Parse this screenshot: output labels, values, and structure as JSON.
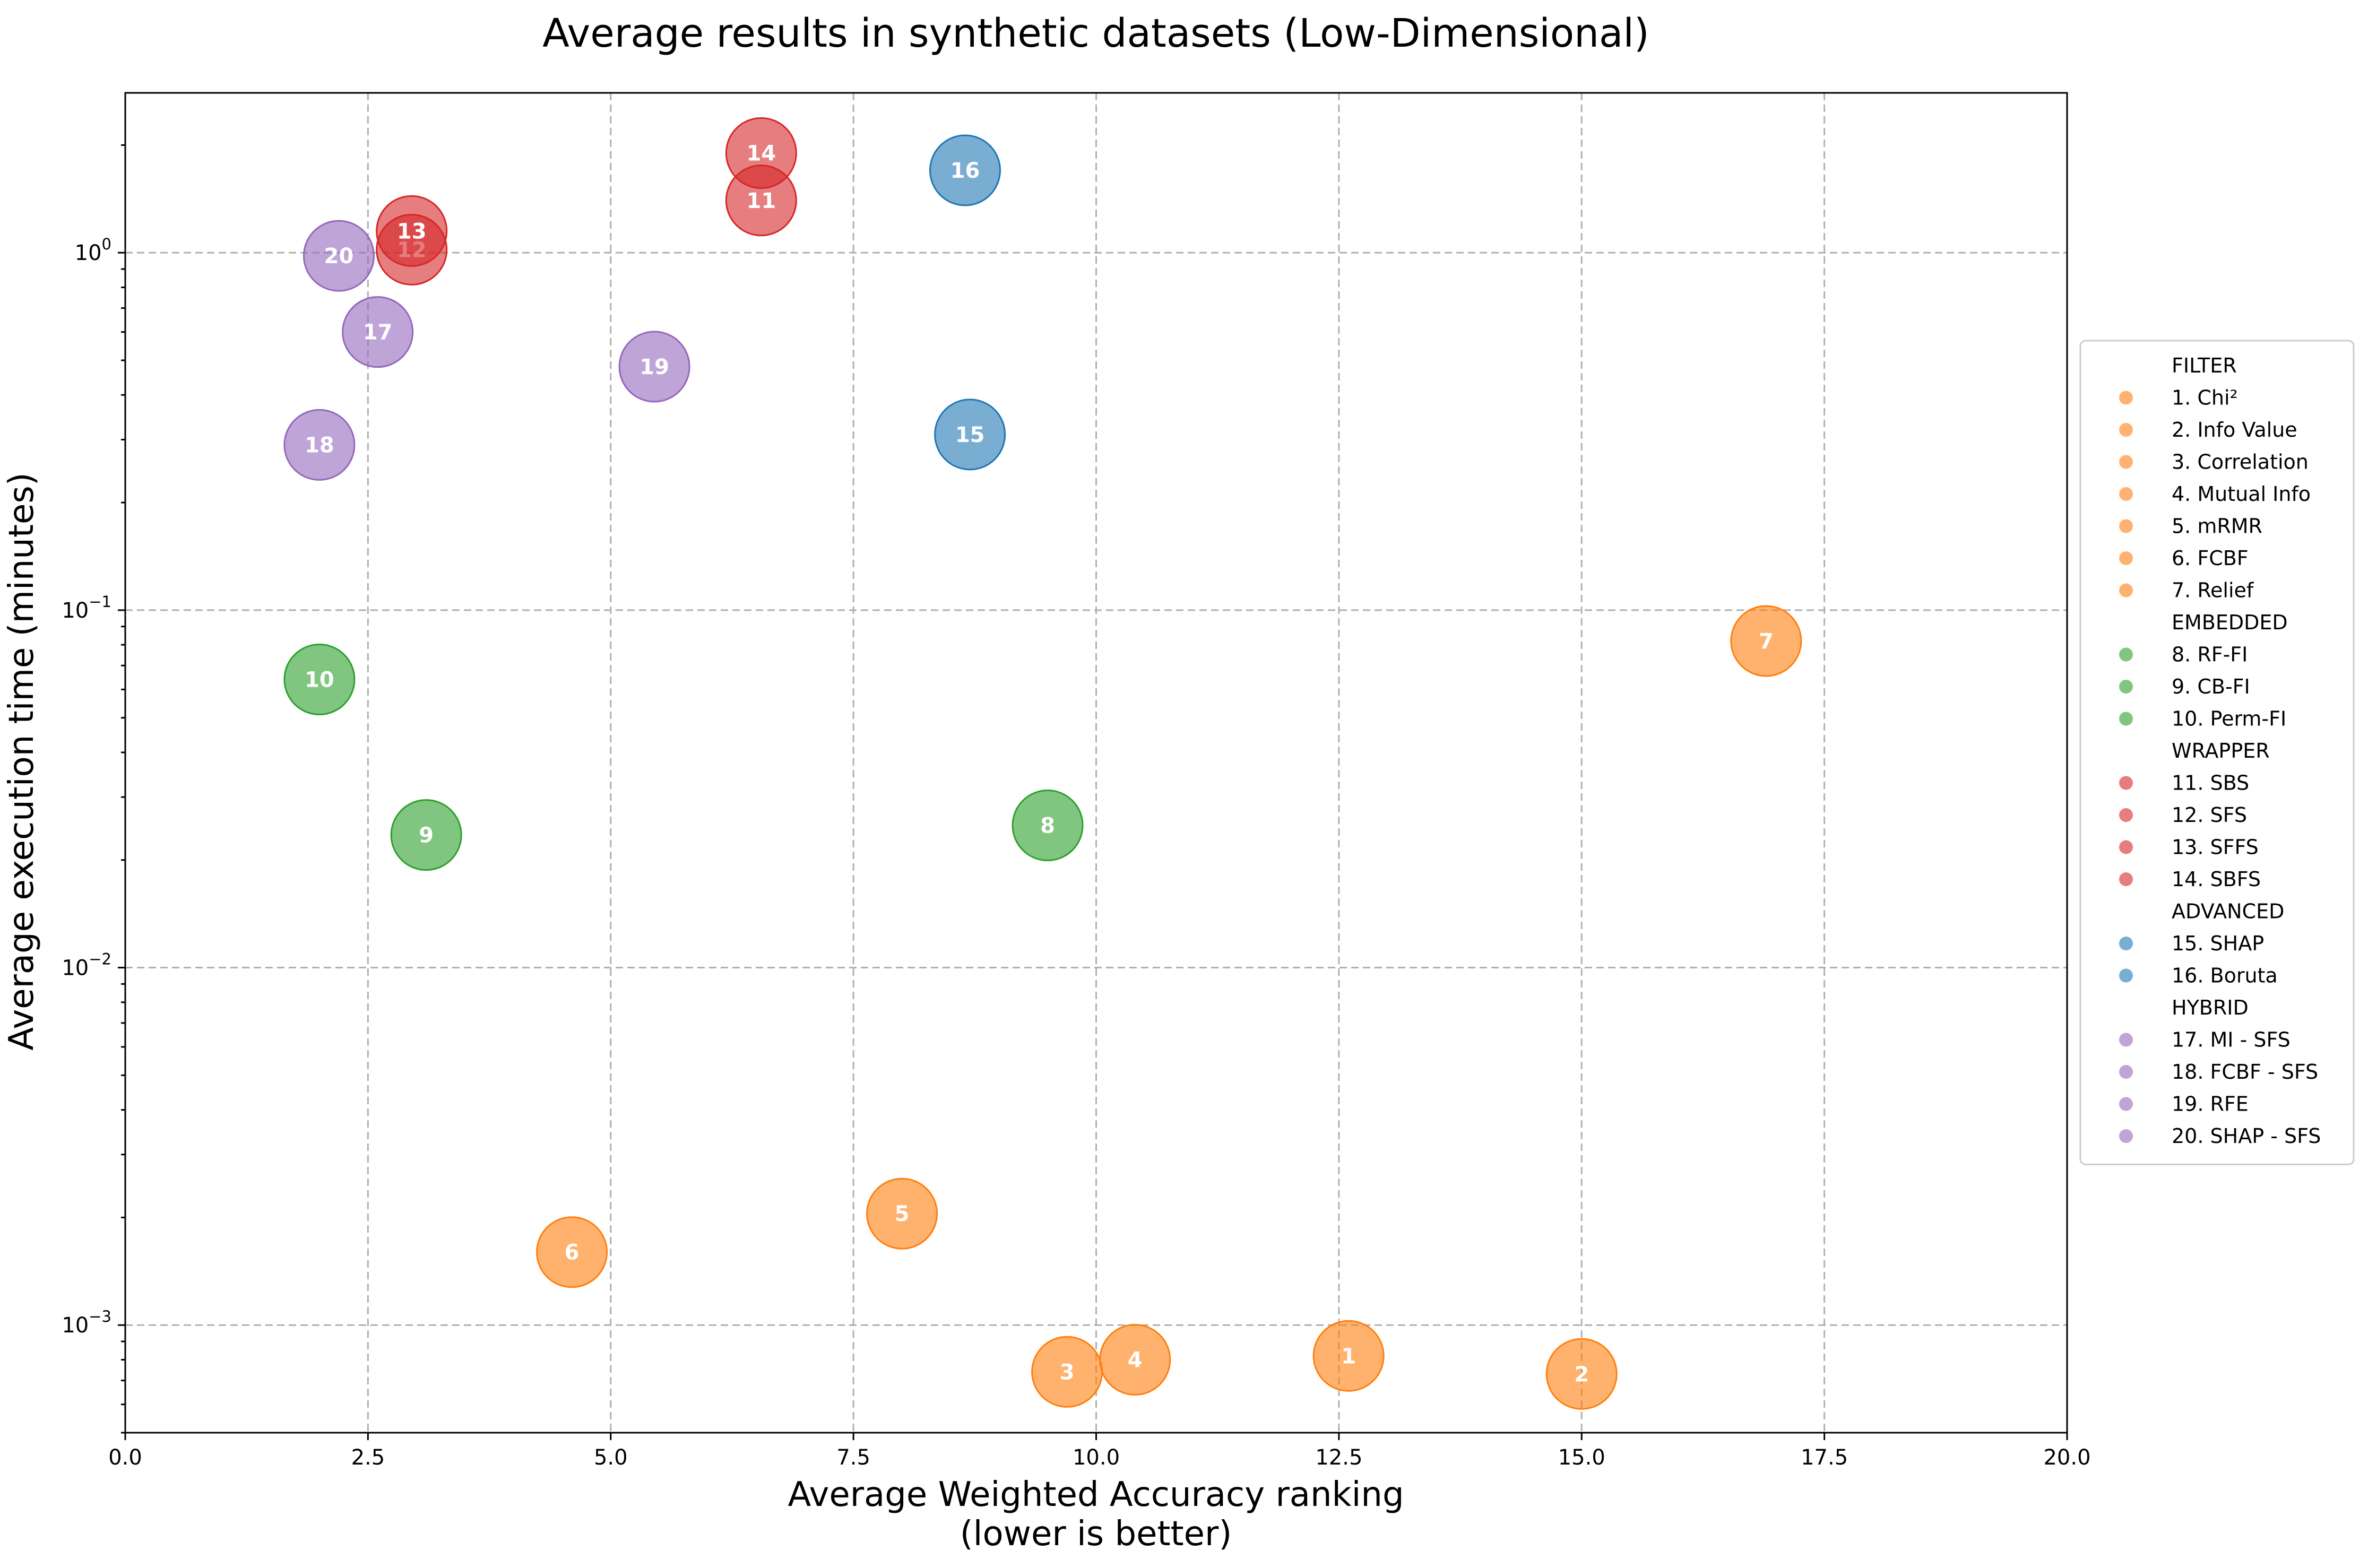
{
  "chart_data": {
    "type": "scatter",
    "title": "Average results in synthetic datasets (Low-Dimensional)",
    "xlabel": [
      "Average Weighted Accuracy ranking",
      "(lower is better)"
    ],
    "ylabel": "Average execution time (minutes)",
    "xlim": [
      0,
      20
    ],
    "ylim": [
      0.0005,
      2.8
    ],
    "y_scale": "log",
    "x_ticks": [
      0,
      2.5,
      5,
      7.5,
      10,
      12.5,
      15,
      17.5,
      20
    ],
    "x_tick_labels": [
      "0.0",
      "2.5",
      "5.0",
      "7.5",
      "10.0",
      "12.5",
      "15.0",
      "17.5",
      "20.0"
    ],
    "y_ticks": [
      0.001,
      0.01,
      0.1,
      1
    ],
    "y_tick_labels": [
      {
        "base": "10",
        "exp": "−3"
      },
      {
        "base": "10",
        "exp": "−2"
      },
      {
        "base": "10",
        "exp": "−1"
      },
      {
        "base": "10",
        "exp": "0"
      }
    ],
    "grid": true,
    "legend_position": "right",
    "groups": [
      {
        "name": "FILTER",
        "color": "#ff7f0e",
        "items": [
          "1. Chi²",
          "2. Info Value",
          "3. Correlation",
          "4. Mutual Info",
          "5. mRMR",
          "6. FCBF",
          "7. Relief"
        ]
      },
      {
        "name": "EMBEDDED",
        "color": "#2ca02c",
        "items": [
          "8. RF-FI",
          "9. CB-FI",
          "10. Perm-FI"
        ]
      },
      {
        "name": "WRAPPER",
        "color": "#d62728",
        "items": [
          "11. SBS",
          "12. SFS",
          "13. SFFS",
          "14. SBFS"
        ]
      },
      {
        "name": "ADVANCED",
        "color": "#1f77b4",
        "items": [
          "15. SHAP",
          "16. Boruta"
        ]
      },
      {
        "name": "HYBRID",
        "color": "#9467bd",
        "items": [
          "17. MI - SFS",
          "18. FCBF - SFS",
          "19. RFE",
          "20. SHAP - SFS"
        ]
      }
    ],
    "points": [
      {
        "label": "1",
        "group": "FILTER",
        "x": 12.6,
        "y": 0.00082
      },
      {
        "label": "2",
        "group": "FILTER",
        "x": 15.0,
        "y": 0.00073
      },
      {
        "label": "3",
        "group": "FILTER",
        "x": 9.7,
        "y": 0.00074
      },
      {
        "label": "4",
        "group": "FILTER",
        "x": 10.4,
        "y": 0.0008
      },
      {
        "label": "5",
        "group": "FILTER",
        "x": 8.0,
        "y": 0.00205
      },
      {
        "label": "6",
        "group": "FILTER",
        "x": 4.6,
        "y": 0.0016
      },
      {
        "label": "7",
        "group": "FILTER",
        "x": 16.9,
        "y": 0.082
      },
      {
        "label": "8",
        "group": "EMBEDDED",
        "x": 9.5,
        "y": 0.025
      },
      {
        "label": "9",
        "group": "EMBEDDED",
        "x": 3.1,
        "y": 0.0235
      },
      {
        "label": "10",
        "group": "EMBEDDED",
        "x": 2.0,
        "y": 0.064
      },
      {
        "label": "11",
        "group": "WRAPPER",
        "x": 6.55,
        "y": 1.4
      },
      {
        "label": "12",
        "group": "WRAPPER",
        "x": 2.95,
        "y": 1.02
      },
      {
        "label": "13",
        "group": "WRAPPER",
        "x": 2.95,
        "y": 1.15
      },
      {
        "label": "14",
        "group": "WRAPPER",
        "x": 6.55,
        "y": 1.9
      },
      {
        "label": "15",
        "group": "ADVANCED",
        "x": 8.7,
        "y": 0.31
      },
      {
        "label": "16",
        "group": "ADVANCED",
        "x": 8.65,
        "y": 1.7
      },
      {
        "label": "17",
        "group": "HYBRID",
        "x": 2.6,
        "y": 0.6
      },
      {
        "label": "18",
        "group": "HYBRID",
        "x": 2.0,
        "y": 0.29
      },
      {
        "label": "19",
        "group": "HYBRID",
        "x": 5.45,
        "y": 0.48
      },
      {
        "label": "20",
        "group": "HYBRID",
        "x": 2.2,
        "y": 0.98
      }
    ]
  }
}
